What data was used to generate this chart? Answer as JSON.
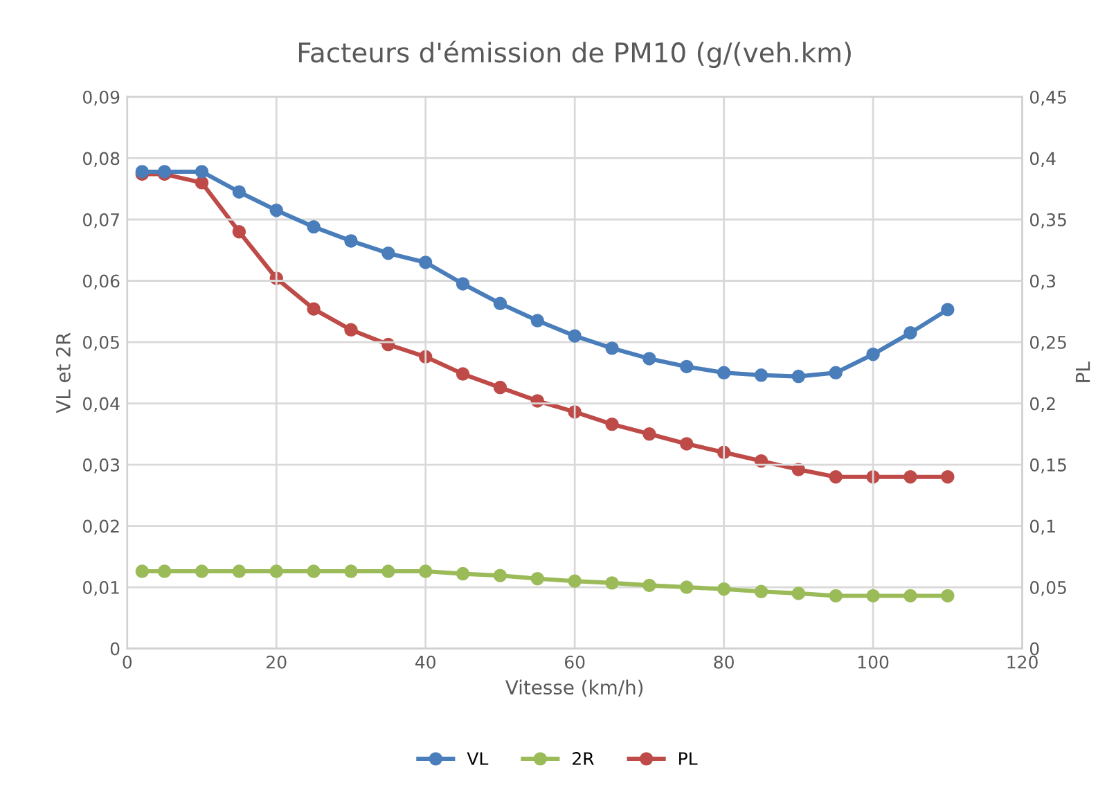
{
  "chart_data": {
    "type": "line",
    "title": "Facteurs d'émission de PM10 (g/(veh.km)",
    "xlabel": "Vitesse (km/h)",
    "ylabel": "VL et 2R",
    "y2label": "PL",
    "x": [
      2,
      5,
      10,
      15,
      20,
      25,
      30,
      35,
      40,
      45,
      50,
      55,
      60,
      65,
      70,
      75,
      80,
      85,
      90,
      95,
      100,
      105,
      110
    ],
    "series": [
      {
        "name": "VL",
        "color": "#4a7ebb",
        "values": [
          0.0778,
          0.0778,
          0.0778,
          0.0745,
          0.0715,
          0.0688,
          0.0665,
          0.0645,
          0.063,
          0.0595,
          0.0563,
          0.0535,
          0.051,
          0.049,
          0.0473,
          0.046,
          0.045,
          0.0446,
          0.0444,
          0.045,
          0.048,
          0.0515,
          0.0553
        ]
      },
      {
        "name": "2R",
        "color": "#9bbb59",
        "values": [
          0.0126,
          0.0126,
          0.0126,
          0.0126,
          0.0126,
          0.0126,
          0.0126,
          0.0126,
          0.0126,
          0.0122,
          0.0119,
          0.0114,
          0.011,
          0.0107,
          0.0103,
          0.01,
          0.0097,
          0.0093,
          0.009,
          0.0086,
          0.0086,
          0.0086,
          0.0086
        ]
      },
      {
        "name": "PL",
        "color": "#be4b48",
        "axis": "y2",
        "values": [
          0.387,
          0.387,
          0.38,
          0.34,
          0.302,
          0.277,
          0.26,
          0.248,
          0.238,
          0.224,
          0.213,
          0.202,
          0.193,
          0.183,
          0.175,
          0.167,
          0.16,
          0.153,
          0.146,
          0.14,
          0.14,
          0.14,
          0.14
        ]
      }
    ],
    "xlim": [
      0,
      120
    ],
    "xticks": [
      0,
      20,
      40,
      60,
      80,
      100,
      120
    ],
    "ylim": [
      0,
      0.09
    ],
    "yticks": [
      0,
      {
        "value": 0.01,
        "label": "0,01"
      },
      {
        "value": 0.02,
        "label": "0,02"
      },
      {
        "value": 0.03,
        "label": "0,03"
      },
      {
        "value": 0.04,
        "label": "0,04"
      },
      {
        "value": 0.05,
        "label": "0,05"
      },
      {
        "value": 0.06,
        "label": "0,06"
      },
      {
        "value": 0.07,
        "label": "0,07"
      },
      {
        "value": 0.08,
        "label": "0,08"
      },
      {
        "value": 0.09,
        "label": "0,09"
      }
    ],
    "y2lim": [
      0,
      0.45
    ],
    "y2ticks": [
      0,
      {
        "value": 0.05,
        "label": "0,05"
      },
      {
        "value": 0.1,
        "label": "0,1"
      },
      {
        "value": 0.15,
        "label": "0,15"
      },
      {
        "value": 0.2,
        "label": "0,2"
      },
      {
        "value": 0.25,
        "label": "0,25"
      },
      {
        "value": 0.3,
        "label": "0,3"
      },
      {
        "value": 0.35,
        "label": "0,35"
      },
      {
        "value": 0.4,
        "label": "0,4"
      },
      {
        "value": 0.45,
        "label": "0,45"
      }
    ],
    "grid": true,
    "legend": "bottom",
    "marker": "circle",
    "line_style": "solid"
  }
}
